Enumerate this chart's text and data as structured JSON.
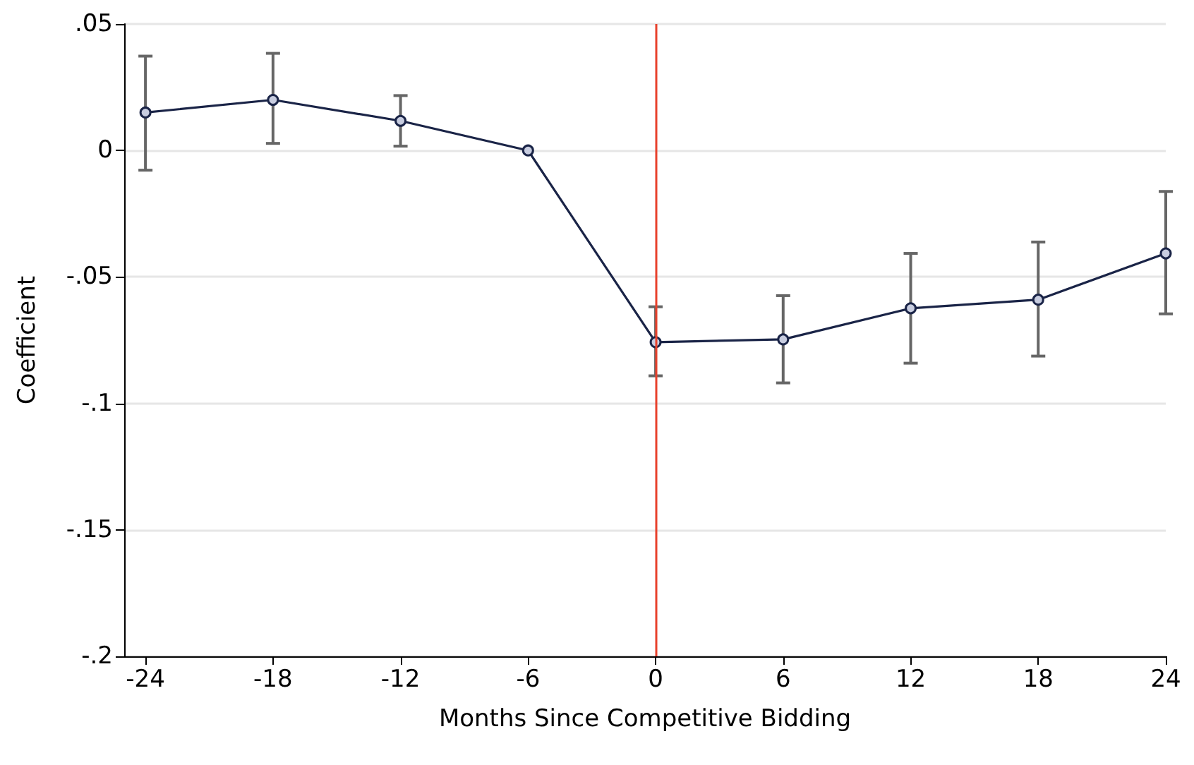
{
  "chart_data": {
    "type": "line",
    "xlabel": "Months Since Competitive Bidding",
    "ylabel": "Coefficient",
    "x": [
      -24,
      -18,
      -12,
      -6,
      0,
      6,
      12,
      18,
      24
    ],
    "series": [
      {
        "color": "#1a2447",
        "values": [
          0.015,
          0.02,
          0.0117,
          0,
          -0.0758,
          -0.0747,
          -0.0624,
          -0.059,
          -0.0407
        ],
        "errors": [
          [
            -0.0078,
            0.0373
          ],
          [
            0.0028,
            0.0384
          ],
          [
            0.0017,
            0.0217
          ],
          null,
          [
            -0.0891,
            -0.0618
          ],
          [
            -0.0919,
            -0.0574
          ],
          [
            -0.0841,
            -0.0407
          ],
          [
            -0.0813,
            -0.0362
          ],
          [
            -0.0646,
            -0.0162
          ]
        ]
      }
    ],
    "xlim": [
      -25,
      24
    ],
    "xticks": [
      -24,
      -18,
      -12,
      -6,
      0,
      6,
      12,
      18,
      24
    ],
    "ylim": [
      -0.2,
      0.05
    ],
    "yticks": [
      {
        "value": -0.2,
        "label": "-.2"
      },
      {
        "value": -0.15,
        "label": "-.15"
      },
      {
        "value": -0.1,
        "label": "-.1"
      },
      {
        "value": -0.05,
        "label": "-.05"
      },
      {
        "value": 0,
        "label": "0"
      },
      {
        "value": 0.05,
        "label": ".05"
      }
    ],
    "ref_lines": [
      {
        "axis": "x",
        "value": 0,
        "color": "#e8412c"
      }
    ],
    "grid": "y",
    "marker": "circle",
    "line_style": "solid"
  }
}
